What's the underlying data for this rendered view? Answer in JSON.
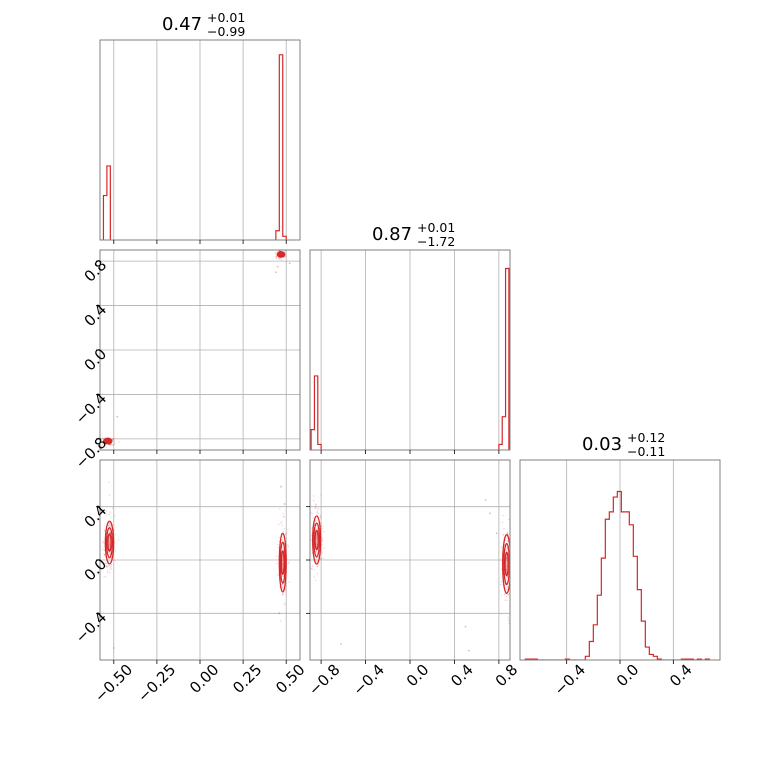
{
  "colors": {
    "series": "#d62728",
    "grid": "#b0b0b0",
    "frame": "#808080"
  },
  "chart_data": [
    {
      "type": "histogram",
      "panel": "1-1",
      "param": 0,
      "title": {
        "value": "0.47",
        "plus": "+0.01",
        "minus": "−0.99"
      },
      "xlim": [
        -0.58,
        0.58
      ],
      "grid": true,
      "bins": [
        {
          "x0": -0.56,
          "x1": -0.54,
          "value": 0.24
        },
        {
          "x0": -0.54,
          "x1": -0.52,
          "value": 0.4
        },
        {
          "x0": 0.44,
          "x1": 0.46,
          "value": 0.05
        },
        {
          "x0": 0.46,
          "x1": 0.48,
          "value": 1.0
        },
        {
          "x0": 0.48,
          "x1": 0.5,
          "value": 0.02
        }
      ]
    },
    {
      "type": "scatter-contour",
      "panel": "2-1",
      "x_param": 0,
      "y_param": 1,
      "xlim": [
        -0.58,
        0.58
      ],
      "ylim": [
        -0.9,
        0.9
      ],
      "grid": true,
      "yticks": [
        "0.8",
        "0.4",
        "0.0",
        "−0.4",
        "−0.8"
      ],
      "clusters": [
        {
          "x": -0.535,
          "y": -0.82,
          "sx": 0.012,
          "sy": 0.012
        },
        {
          "x": 0.47,
          "y": 0.86,
          "sx": 0.01,
          "sy": 0.012
        }
      ],
      "stray_points": [
        [
          -0.48,
          -0.6
        ],
        [
          0.45,
          0.75
        ],
        [
          0.52,
          0.78
        ],
        [
          0.44,
          0.7
        ]
      ]
    },
    {
      "type": "histogram",
      "panel": "2-2",
      "param": 1,
      "title": {
        "value": "0.87",
        "plus": "+0.01",
        "minus": "−1.72"
      },
      "xlim": [
        -0.9,
        0.9
      ],
      "grid": true,
      "bins": [
        {
          "x0": -0.89,
          "x1": -0.86,
          "value": 0.11
        },
        {
          "x0": -0.86,
          "x1": -0.83,
          "value": 0.4
        },
        {
          "x0": -0.83,
          "x1": -0.8,
          "value": 0.03
        },
        {
          "x0": 0.8,
          "x1": 0.83,
          "value": 0.03
        },
        {
          "x0": 0.83,
          "x1": 0.86,
          "value": 0.18
        },
        {
          "x0": 0.86,
          "x1": 0.89,
          "value": 0.98
        }
      ]
    },
    {
      "type": "scatter-contour",
      "panel": "3-1",
      "x_param": 0,
      "y_param": 2,
      "xlim": [
        -0.58,
        0.58
      ],
      "ylim": [
        -0.75,
        0.75
      ],
      "grid": true,
      "xticks": [
        "−0.50",
        "−0.25",
        "0.00",
        "0.25",
        "0.50"
      ],
      "yticks": [
        "0.4",
        "0.0",
        "−0.4"
      ],
      "clusters": [
        {
          "x": -0.525,
          "y": 0.13,
          "sx": 0.012,
          "sy": 0.08
        },
        {
          "x": 0.48,
          "y": -0.02,
          "sx": 0.01,
          "sy": 0.11
        }
      ],
      "stray_points": [
        [
          -0.5,
          -0.66
        ],
        [
          0.47,
          0.55
        ],
        [
          0.49,
          0.42
        ],
        [
          0.46,
          -0.4
        ]
      ]
    },
    {
      "type": "scatter-contour",
      "panel": "3-2",
      "x_param": 1,
      "y_param": 2,
      "xlim": [
        -0.9,
        0.9
      ],
      "ylim": [
        -0.75,
        0.75
      ],
      "grid": true,
      "xticks": [
        "−0.8",
        "−0.4",
        "0.0",
        "0.4",
        "0.8"
      ],
      "clusters": [
        {
          "x": -0.84,
          "y": 0.15,
          "sx": 0.018,
          "sy": 0.09
        },
        {
          "x": 0.87,
          "y": -0.03,
          "sx": 0.018,
          "sy": 0.11
        }
      ],
      "stray_points": [
        [
          -0.62,
          -0.63
        ],
        [
          0.5,
          -0.5
        ],
        [
          0.53,
          -0.68
        ],
        [
          0.68,
          0.45
        ],
        [
          0.72,
          0.35
        ],
        [
          0.78,
          0.2
        ]
      ]
    },
    {
      "type": "histogram",
      "panel": "3-3",
      "param": 2,
      "title": {
        "value": "0.03",
        "plus": "+0.12",
        "minus": "−0.11"
      },
      "xlim": [
        -0.75,
        0.75
      ],
      "grid": true,
      "xticks": [
        "−0.4",
        "0.0",
        "0.4"
      ],
      "bins": [
        {
          "x0": -0.71,
          "x1": -0.68,
          "value": 0.005
        },
        {
          "x0": -0.68,
          "x1": -0.65,
          "value": 0.005
        },
        {
          "x0": -0.65,
          "x1": -0.62,
          "value": 0.005
        },
        {
          "x0": -0.62,
          "x1": -0.59,
          "value": 0
        },
        {
          "x0": -0.59,
          "x1": -0.56,
          "value": 0
        },
        {
          "x0": -0.56,
          "x1": -0.53,
          "value": 0
        },
        {
          "x0": -0.53,
          "x1": -0.5,
          "value": 0
        },
        {
          "x0": -0.5,
          "x1": -0.47,
          "value": 0
        },
        {
          "x0": -0.47,
          "x1": -0.44,
          "value": 0
        },
        {
          "x0": -0.44,
          "x1": -0.41,
          "value": 0
        },
        {
          "x0": -0.41,
          "x1": -0.38,
          "value": 0.005
        },
        {
          "x0": -0.38,
          "x1": -0.35,
          "value": 0
        },
        {
          "x0": -0.35,
          "x1": -0.32,
          "value": 0
        },
        {
          "x0": -0.32,
          "x1": -0.29,
          "value": 0
        },
        {
          "x0": -0.29,
          "x1": -0.26,
          "value": 0
        },
        {
          "x0": -0.26,
          "x1": -0.23,
          "value": 0.02
        },
        {
          "x0": -0.23,
          "x1": -0.2,
          "value": 0.1
        },
        {
          "x0": -0.2,
          "x1": -0.17,
          "value": 0.19
        },
        {
          "x0": -0.17,
          "x1": -0.14,
          "value": 0.35
        },
        {
          "x0": -0.14,
          "x1": -0.11,
          "value": 0.55
        },
        {
          "x0": -0.11,
          "x1": -0.08,
          "value": 0.76
        },
        {
          "x0": -0.08,
          "x1": -0.05,
          "value": 0.8
        },
        {
          "x0": -0.05,
          "x1": -0.02,
          "value": 0.88
        },
        {
          "x0": -0.02,
          "x1": 0.01,
          "value": 0.91
        },
        {
          "x0": 0.01,
          "x1": 0.04,
          "value": 0.8
        },
        {
          "x0": 0.04,
          "x1": 0.07,
          "value": 0.8
        },
        {
          "x0": 0.07,
          "x1": 0.1,
          "value": 0.73
        },
        {
          "x0": 0.1,
          "x1": 0.13,
          "value": 0.56
        },
        {
          "x0": 0.13,
          "x1": 0.16,
          "value": 0.38
        },
        {
          "x0": 0.16,
          "x1": 0.19,
          "value": 0.21
        },
        {
          "x0": 0.19,
          "x1": 0.22,
          "value": 0.07
        },
        {
          "x0": 0.22,
          "x1": 0.25,
          "value": 0.03
        },
        {
          "x0": 0.25,
          "x1": 0.28,
          "value": 0.02
        },
        {
          "x0": 0.28,
          "x1": 0.31,
          "value": 0.005
        },
        {
          "x0": 0.31,
          "x1": 0.34,
          "value": 0
        },
        {
          "x0": 0.34,
          "x1": 0.37,
          "value": 0
        },
        {
          "x0": 0.37,
          "x1": 0.4,
          "value": 0
        },
        {
          "x0": 0.4,
          "x1": 0.43,
          "value": 0
        },
        {
          "x0": 0.43,
          "x1": 0.46,
          "value": 0
        },
        {
          "x0": 0.46,
          "x1": 0.49,
          "value": 0.005
        },
        {
          "x0": 0.49,
          "x1": 0.52,
          "value": 0.005
        },
        {
          "x0": 0.52,
          "x1": 0.55,
          "value": 0.005
        },
        {
          "x0": 0.55,
          "x1": 0.58,
          "value": 0
        },
        {
          "x0": 0.58,
          "x1": 0.61,
          "value": 0.005
        },
        {
          "x0": 0.61,
          "x1": 0.64,
          "value": 0
        },
        {
          "x0": 0.64,
          "x1": 0.67,
          "value": 0.005
        }
      ]
    }
  ]
}
